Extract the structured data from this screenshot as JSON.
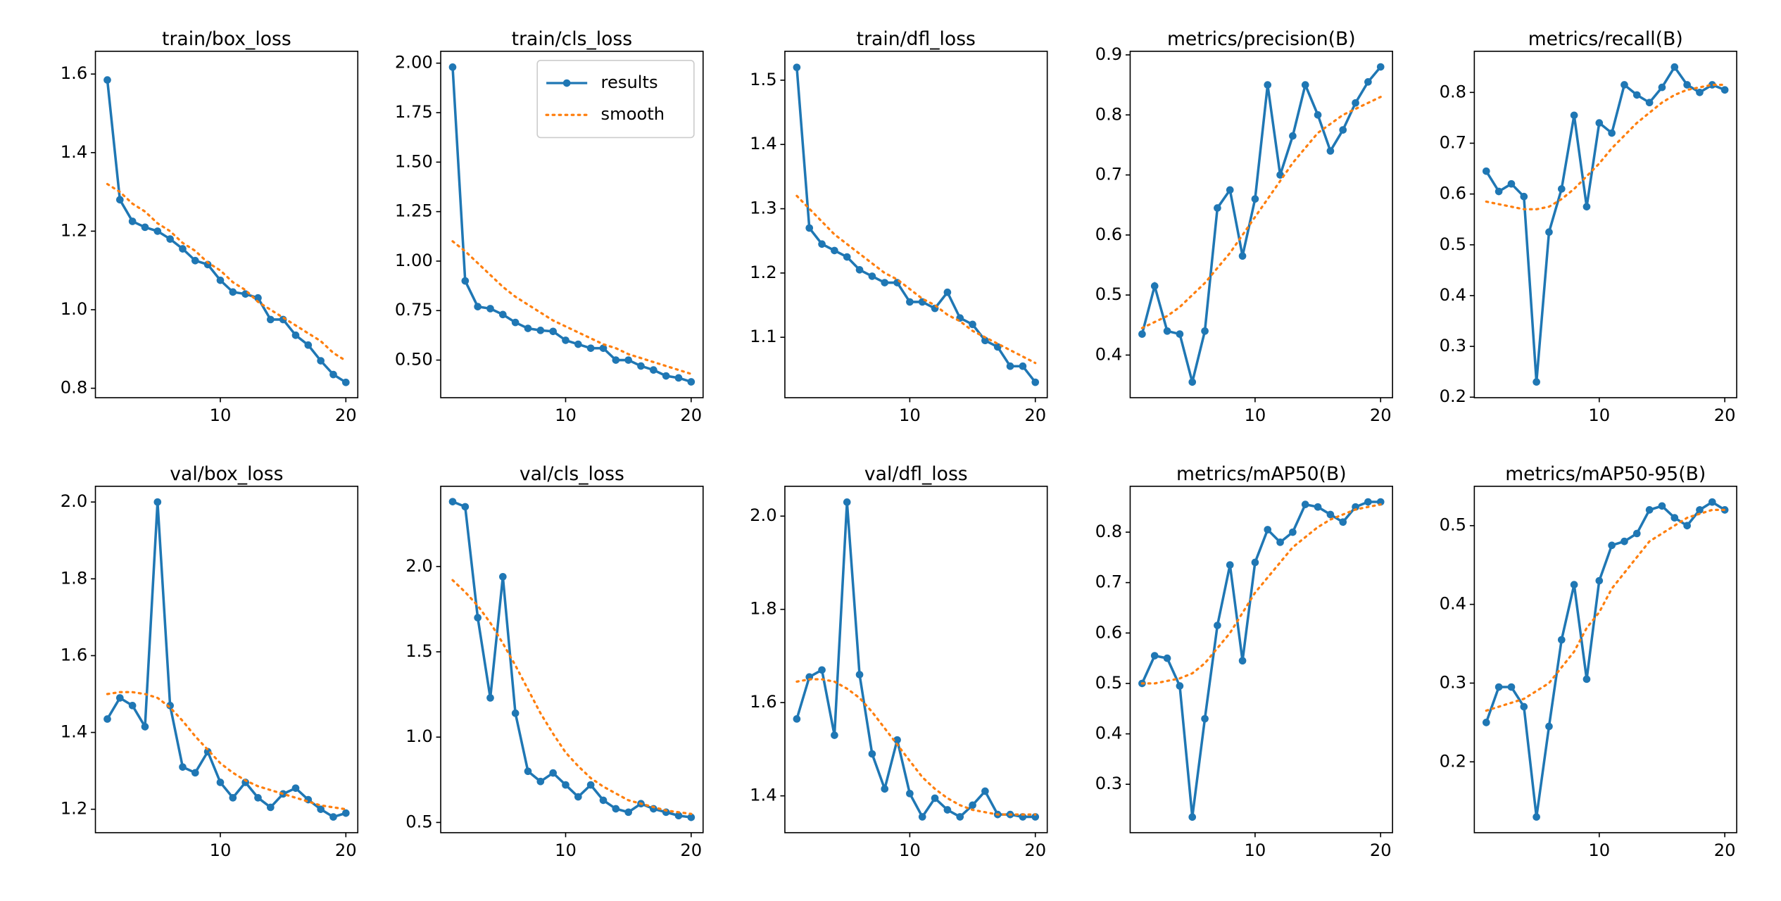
{
  "chart_data": [
    {
      "type": "line",
      "title": "train/box_loss",
      "x": [
        1,
        2,
        3,
        4,
        5,
        6,
        7,
        8,
        9,
        10,
        11,
        12,
        13,
        14,
        15,
        16,
        17,
        18,
        19,
        20
      ],
      "series": [
        {
          "color": "#1f77b4",
          "values": [
            1.585,
            1.28,
            1.225,
            1.21,
            1.2,
            1.18,
            1.155,
            1.125,
            1.115,
            1.075,
            1.045,
            1.04,
            1.03,
            0.975,
            0.975,
            0.935,
            0.91,
            0.87,
            0.835,
            0.815
          ]
        },
        {
          "color": "#ff7f0e",
          "values": [
            1.32,
            1.3,
            1.27,
            1.25,
            1.22,
            1.2,
            1.17,
            1.15,
            1.12,
            1.1,
            1.07,
            1.05,
            1.02,
            1.0,
            0.98,
            0.96,
            0.94,
            0.92,
            0.89,
            0.87
          ]
        }
      ],
      "xlim": [
        0.05,
        20.95
      ],
      "xticks": [
        10,
        20
      ],
      "ylim": [
        0.776,
        1.658
      ],
      "yticks": [
        0.8,
        {
          "value": 1,
          "label": "1.0"
        },
        1.2,
        1.4,
        1.6
      ]
    },
    {
      "type": "line",
      "title": "train/cls_loss",
      "x": [
        1,
        2,
        3,
        4,
        5,
        6,
        7,
        8,
        9,
        10,
        11,
        12,
        13,
        14,
        15,
        16,
        17,
        18,
        19,
        20
      ],
      "series": [
        {
          "name": "results",
          "color": "#1f77b4",
          "values": [
            1.98,
            0.9,
            0.77,
            0.76,
            0.73,
            0.69,
            0.66,
            0.65,
            0.645,
            0.6,
            0.58,
            0.56,
            0.56,
            0.5,
            0.5,
            0.47,
            0.45,
            0.42,
            0.41,
            0.39
          ]
        },
        {
          "name": "smooth",
          "color": "#ff7f0e",
          "values": [
            1.1,
            1.05,
            0.99,
            0.93,
            0.87,
            0.82,
            0.78,
            0.74,
            0.7,
            0.67,
            0.64,
            0.61,
            0.58,
            0.56,
            0.53,
            0.51,
            0.49,
            0.47,
            0.45,
            0.43
          ]
        }
      ],
      "xlim": [
        0.05,
        20.95
      ],
      "xticks": [
        10,
        20
      ],
      "ylim": [
        0.31,
        2.06
      ],
      "yticks": [
        {
          "value": 0.5,
          "label": "0.50"
        },
        0.75,
        {
          "value": 1,
          "label": "1.00"
        },
        1.25,
        {
          "value": 1.5,
          "label": "1.50"
        },
        1.75,
        {
          "value": 2,
          "label": "2.00"
        }
      ],
      "legend": "upper right"
    },
    {
      "type": "line",
      "title": "train/dfl_loss",
      "x": [
        1,
        2,
        3,
        4,
        5,
        6,
        7,
        8,
        9,
        10,
        11,
        12,
        13,
        14,
        15,
        16,
        17,
        18,
        19,
        20
      ],
      "series": [
        {
          "color": "#1f77b4",
          "values": [
            1.52,
            1.27,
            1.245,
            1.235,
            1.225,
            1.205,
            1.195,
            1.185,
            1.185,
            1.155,
            1.155,
            1.145,
            1.17,
            1.13,
            1.12,
            1.095,
            1.085,
            1.055,
            1.055,
            1.03
          ]
        },
        {
          "color": "#ff7f0e",
          "values": [
            1.32,
            1.3,
            1.28,
            1.26,
            1.245,
            1.23,
            1.215,
            1.2,
            1.19,
            1.175,
            1.16,
            1.15,
            1.135,
            1.125,
            1.11,
            1.1,
            1.09,
            1.08,
            1.07,
            1.06
          ]
        }
      ],
      "xlim": [
        0.05,
        20.95
      ],
      "xticks": [
        10,
        20
      ],
      "ylim": [
        1.006,
        1.545
      ],
      "yticks": [
        1.1,
        1.2,
        1.3,
        1.4,
        1.5
      ]
    },
    {
      "type": "line",
      "title": "metrics/precision(B)",
      "x": [
        1,
        2,
        3,
        4,
        5,
        6,
        7,
        8,
        9,
        10,
        11,
        12,
        13,
        14,
        15,
        16,
        17,
        18,
        19,
        20
      ],
      "series": [
        {
          "color": "#1f77b4",
          "values": [
            0.435,
            0.515,
            0.44,
            0.435,
            0.355,
            0.44,
            0.645,
            0.675,
            0.565,
            0.66,
            0.85,
            0.7,
            0.765,
            0.85,
            0.8,
            0.74,
            0.775,
            0.82,
            0.855,
            0.88
          ]
        },
        {
          "color": "#ff7f0e",
          "values": [
            0.445,
            0.455,
            0.465,
            0.48,
            0.5,
            0.52,
            0.545,
            0.57,
            0.6,
            0.63,
            0.66,
            0.69,
            0.72,
            0.745,
            0.77,
            0.785,
            0.8,
            0.81,
            0.82,
            0.83
          ]
        }
      ],
      "xlim": [
        0.05,
        20.95
      ],
      "xticks": [
        10,
        20
      ],
      "ylim": [
        0.329,
        0.906
      ],
      "yticks": [
        0.4,
        0.5,
        0.6,
        0.7,
        0.8,
        0.9
      ]
    },
    {
      "type": "line",
      "title": "metrics/recall(B)",
      "x": [
        1,
        2,
        3,
        4,
        5,
        6,
        7,
        8,
        9,
        10,
        11,
        12,
        13,
        14,
        15,
        16,
        17,
        18,
        19,
        20
      ],
      "series": [
        {
          "color": "#1f77b4",
          "values": [
            0.645,
            0.605,
            0.62,
            0.595,
            0.23,
            0.525,
            0.61,
            0.755,
            0.575,
            0.74,
            0.72,
            0.815,
            0.795,
            0.78,
            0.81,
            0.85,
            0.815,
            0.8,
            0.815,
            0.805
          ]
        },
        {
          "color": "#ff7f0e",
          "values": [
            0.585,
            0.58,
            0.575,
            0.57,
            0.57,
            0.575,
            0.59,
            0.61,
            0.635,
            0.66,
            0.69,
            0.715,
            0.74,
            0.76,
            0.78,
            0.795,
            0.805,
            0.81,
            0.815,
            0.815
          ]
        }
      ],
      "xlim": [
        0.05,
        20.95
      ],
      "xticks": [
        10,
        20
      ],
      "ylim": [
        0.199,
        0.881
      ],
      "yticks": [
        0.2,
        0.3,
        0.4,
        0.5,
        0.6,
        0.7,
        0.8
      ]
    },
    {
      "type": "line",
      "title": "val/box_loss",
      "x": [
        1,
        2,
        3,
        4,
        5,
        6,
        7,
        8,
        9,
        10,
        11,
        12,
        13,
        14,
        15,
        16,
        17,
        18,
        19,
        20
      ],
      "series": [
        {
          "color": "#1f77b4",
          "values": [
            1.435,
            1.49,
            1.47,
            1.415,
            2.0,
            1.47,
            1.31,
            1.295,
            1.35,
            1.27,
            1.23,
            1.27,
            1.23,
            1.205,
            1.24,
            1.255,
            1.225,
            1.2,
            1.18,
            1.19
          ]
        },
        {
          "color": "#ff7f0e",
          "values": [
            1.5,
            1.505,
            1.505,
            1.5,
            1.49,
            1.465,
            1.43,
            1.39,
            1.355,
            1.32,
            1.295,
            1.275,
            1.26,
            1.25,
            1.24,
            1.23,
            1.22,
            1.21,
            1.205,
            1.2
          ]
        }
      ],
      "xlim": [
        0.05,
        20.95
      ],
      "xticks": [
        10,
        20
      ],
      "ylim": [
        1.139,
        2.041
      ],
      "yticks": [
        1.2,
        1.4,
        1.6,
        1.8,
        {
          "value": 2,
          "label": "2.0"
        }
      ]
    },
    {
      "type": "line",
      "title": "val/cls_loss",
      "x": [
        1,
        2,
        3,
        4,
        5,
        6,
        7,
        8,
        9,
        10,
        11,
        12,
        13,
        14,
        15,
        16,
        17,
        18,
        19,
        20
      ],
      "series": [
        {
          "color": "#1f77b4",
          "values": [
            2.38,
            2.35,
            1.7,
            1.23,
            1.94,
            1.14,
            0.8,
            0.74,
            0.79,
            0.72,
            0.65,
            0.72,
            0.63,
            0.58,
            0.56,
            0.61,
            0.58,
            0.56,
            0.54,
            0.53
          ]
        },
        {
          "color": "#ff7f0e",
          "values": [
            1.92,
            1.85,
            1.77,
            1.67,
            1.55,
            1.42,
            1.28,
            1.14,
            1.02,
            0.91,
            0.83,
            0.76,
            0.71,
            0.67,
            0.63,
            0.61,
            0.59,
            0.57,
            0.56,
            0.55
          ]
        }
      ],
      "xlim": [
        0.05,
        20.95
      ],
      "xticks": [
        10,
        20
      ],
      "ylim": [
        0.44,
        2.47
      ],
      "yticks": [
        0.5,
        {
          "value": 1,
          "label": "1.0"
        },
        1.5,
        {
          "value": 2,
          "label": "2.0"
        }
      ]
    },
    {
      "type": "line",
      "title": "val/dfl_loss",
      "x": [
        1,
        2,
        3,
        4,
        5,
        6,
        7,
        8,
        9,
        10,
        11,
        12,
        13,
        14,
        15,
        16,
        17,
        18,
        19,
        20
      ],
      "series": [
        {
          "color": "#1f77b4",
          "values": [
            1.565,
            1.655,
            1.67,
            1.53,
            2.03,
            1.66,
            1.49,
            1.415,
            1.52,
            1.405,
            1.355,
            1.395,
            1.37,
            1.355,
            1.38,
            1.41,
            1.36,
            1.36,
            1.355,
            1.355
          ]
        },
        {
          "color": "#ff7f0e",
          "values": [
            1.645,
            1.65,
            1.65,
            1.645,
            1.63,
            1.61,
            1.58,
            1.545,
            1.51,
            1.475,
            1.44,
            1.415,
            1.395,
            1.38,
            1.37,
            1.365,
            1.36,
            1.36,
            1.36,
            1.36
          ]
        }
      ],
      "xlim": [
        0.05,
        20.95
      ],
      "xticks": [
        10,
        20
      ],
      "ylim": [
        1.321,
        2.064
      ],
      "yticks": [
        1.4,
        1.6,
        1.8,
        {
          "value": 2,
          "label": "2.0"
        }
      ]
    },
    {
      "type": "line",
      "title": "metrics/mAP50(B)",
      "x": [
        1,
        2,
        3,
        4,
        5,
        6,
        7,
        8,
        9,
        10,
        11,
        12,
        13,
        14,
        15,
        16,
        17,
        18,
        19,
        20
      ],
      "series": [
        {
          "color": "#1f77b4",
          "values": [
            0.5,
            0.555,
            0.55,
            0.495,
            0.235,
            0.43,
            0.615,
            0.735,
            0.545,
            0.74,
            0.805,
            0.78,
            0.8,
            0.855,
            0.85,
            0.835,
            0.82,
            0.85,
            0.86,
            0.86
          ]
        },
        {
          "color": "#ff7f0e",
          "values": [
            0.5,
            0.5,
            0.505,
            0.51,
            0.52,
            0.54,
            0.57,
            0.6,
            0.64,
            0.68,
            0.71,
            0.74,
            0.77,
            0.79,
            0.81,
            0.825,
            0.835,
            0.845,
            0.85,
            0.855
          ]
        }
      ],
      "xlim": [
        0.05,
        20.95
      ],
      "xticks": [
        10,
        20
      ],
      "ylim": [
        0.204,
        0.891
      ],
      "yticks": [
        0.3,
        0.4,
        0.5,
        0.6,
        0.7,
        0.8
      ]
    },
    {
      "type": "line",
      "title": "metrics/mAP50-95(B)",
      "x": [
        1,
        2,
        3,
        4,
        5,
        6,
        7,
        8,
        9,
        10,
        11,
        12,
        13,
        14,
        15,
        16,
        17,
        18,
        19,
        20
      ],
      "series": [
        {
          "color": "#1f77b4",
          "values": [
            0.25,
            0.295,
            0.295,
            0.27,
            0.13,
            0.245,
            0.355,
            0.425,
            0.305,
            0.43,
            0.475,
            0.48,
            0.49,
            0.52,
            0.525,
            0.51,
            0.5,
            0.52,
            0.53,
            0.52
          ]
        },
        {
          "color": "#ff7f0e",
          "values": [
            0.265,
            0.27,
            0.275,
            0.28,
            0.29,
            0.3,
            0.32,
            0.34,
            0.37,
            0.39,
            0.42,
            0.44,
            0.46,
            0.48,
            0.49,
            0.5,
            0.51,
            0.515,
            0.52,
            0.52
          ]
        }
      ],
      "xlim": [
        0.05,
        20.95
      ],
      "xticks": [
        10,
        20
      ],
      "ylim": [
        0.11,
        0.55
      ],
      "yticks": [
        0.2,
        0.3,
        0.4,
        0.5
      ]
    }
  ]
}
